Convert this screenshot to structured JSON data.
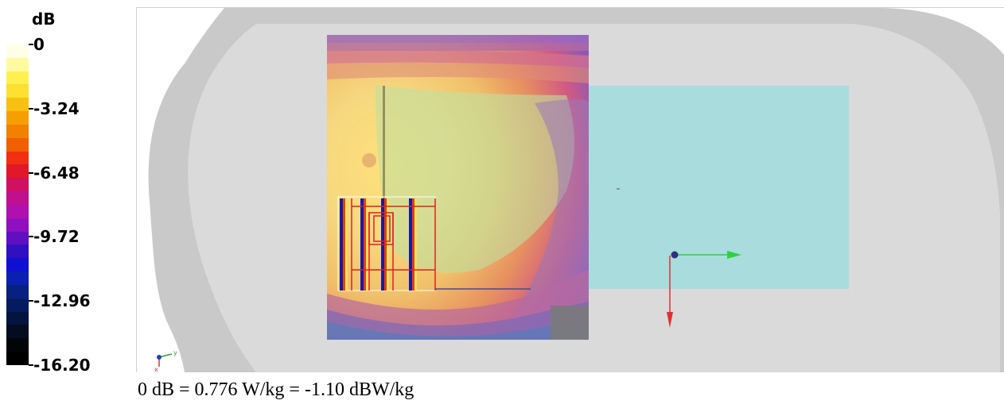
{
  "legend": {
    "unit": "dB",
    "ticks": [
      "0",
      "-3.24",
      "-6.48",
      "-9.72",
      "-12.96",
      "-16.20"
    ],
    "colors": [
      "#ffffe8",
      "#fffaa0",
      "#fff050",
      "#fde030",
      "#f8c010",
      "#f5a000",
      "#f38000",
      "#f06000",
      "#f03010",
      "#e01828",
      "#d01060",
      "#c01090",
      "#b010b0",
      "#9010c0",
      "#6010c0",
      "#3010c0",
      "#1010d0",
      "#0a20b0",
      "#082080",
      "#061a60",
      "#041440",
      "#030c20",
      "#020408",
      "#000000"
    ]
  },
  "view": {
    "axis_icon_label": "y",
    "sar_overlay": {
      "min_db": -16.2,
      "max_db": 0,
      "peak_region": "upper-left"
    }
  },
  "caption": "0 dB = 0.776 W/kg = -1.10 dBW/kg"
}
